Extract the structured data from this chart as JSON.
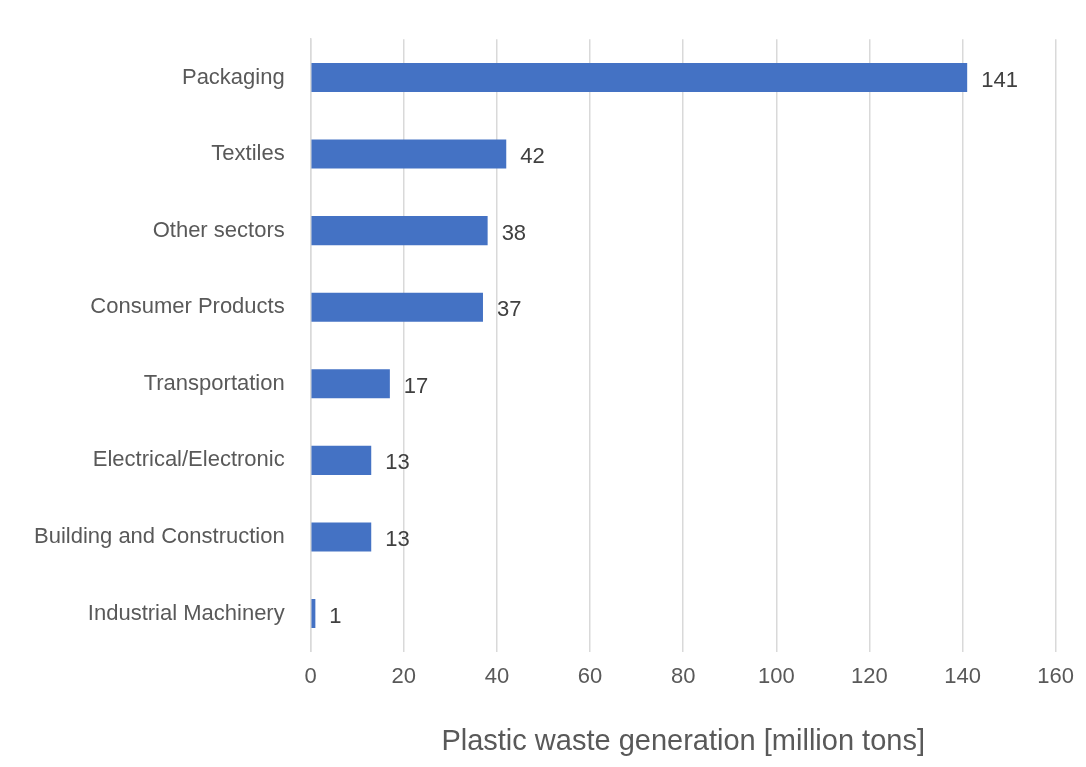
{
  "chart_data": {
    "type": "bar",
    "orientation": "horizontal",
    "xlabel": "Plastic waste generation [million tons]",
    "categories": [
      "Packaging",
      "Textiles",
      "Other sectors",
      "Consumer Products",
      "Transportation",
      "Electrical/Electronic",
      "Building and Construction",
      "Industrial Machinery"
    ],
    "values": [
      141,
      42,
      38,
      37,
      17,
      13,
      13,
      1
    ],
    "color": "#4472c4",
    "xlim": [
      0,
      160
    ],
    "xticks": [
      0,
      20,
      40,
      60,
      80,
      100,
      120,
      140,
      160
    ],
    "grid": "x",
    "data_labels": true
  }
}
